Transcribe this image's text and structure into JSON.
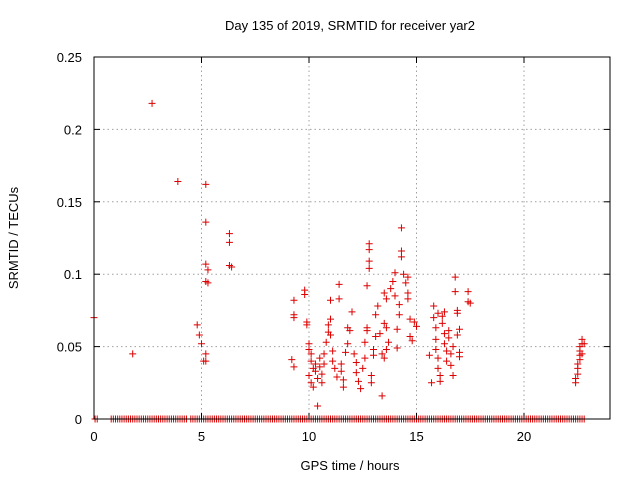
{
  "chart_data": {
    "type": "scatter",
    "title": "Day 135 of 2019, SRMTID for receiver yar2",
    "xlabel": "GPS time / hours",
    "ylabel": "SRMTID / TECUs",
    "xlim": [
      0,
      24
    ],
    "ylim": [
      0,
      0.25
    ],
    "x_ticks": [
      0,
      5,
      10,
      15,
      20
    ],
    "y_ticks": [
      0,
      0.05,
      0.1,
      0.15,
      0.2,
      0.25
    ],
    "x_tick_labels": [
      "0",
      "5",
      "10",
      "15",
      "20"
    ],
    "y_tick_labels": [
      "0",
      "0.05",
      "0.1",
      "0.15",
      "0.2",
      "0.25"
    ],
    "grid": true,
    "marker": "+",
    "color": "#dd0000",
    "series": [
      {
        "name": "SRMTID",
        "points": [
          [
            0.0,
            0.07
          ],
          [
            1.8,
            0.045
          ],
          [
            2.7,
            0.218
          ],
          [
            3.9,
            0.164
          ],
          [
            4.8,
            0.065
          ],
          [
            4.9,
            0.058
          ],
          [
            5.0,
            0.052
          ],
          [
            5.1,
            0.04
          ],
          [
            5.2,
            0.045
          ],
          [
            5.2,
            0.04
          ],
          [
            5.2,
            0.162
          ],
          [
            5.2,
            0.136
          ],
          [
            5.2,
            0.107
          ],
          [
            5.3,
            0.103
          ],
          [
            5.2,
            0.095
          ],
          [
            5.3,
            0.094
          ],
          [
            6.3,
            0.128
          ],
          [
            6.3,
            0.122
          ],
          [
            6.3,
            0.106
          ],
          [
            6.4,
            0.105
          ],
          [
            9.3,
            0.082
          ],
          [
            9.3,
            0.072
          ],
          [
            9.3,
            0.07
          ],
          [
            9.2,
            0.041
          ],
          [
            9.3,
            0.036
          ],
          [
            9.8,
            0.089
          ],
          [
            9.8,
            0.086
          ],
          [
            9.9,
            0.067
          ],
          [
            9.9,
            0.065
          ],
          [
            10.0,
            0.052
          ],
          [
            10.0,
            0.048
          ],
          [
            10.1,
            0.045
          ],
          [
            10.1,
            0.04
          ],
          [
            10.2,
            0.035
          ],
          [
            10.0,
            0.03
          ],
          [
            10.1,
            0.025
          ],
          [
            10.2,
            0.022
          ],
          [
            10.3,
            0.038
          ],
          [
            10.3,
            0.033
          ],
          [
            10.4,
            0.028
          ],
          [
            10.4,
            0.009
          ],
          [
            10.5,
            0.042
          ],
          [
            10.5,
            0.036
          ],
          [
            10.6,
            0.031
          ],
          [
            10.6,
            0.025
          ],
          [
            10.7,
            0.038
          ],
          [
            10.7,
            0.045
          ],
          [
            10.8,
            0.053
          ],
          [
            10.9,
            0.06
          ],
          [
            10.9,
            0.065
          ],
          [
            11.0,
            0.069
          ],
          [
            11.0,
            0.058
          ],
          [
            11.1,
            0.047
          ],
          [
            11.0,
            0.082
          ],
          [
            11.1,
            0.04
          ],
          [
            11.2,
            0.035
          ],
          [
            11.3,
            0.029
          ],
          [
            11.4,
            0.093
          ],
          [
            11.4,
            0.083
          ],
          [
            11.5,
            0.038
          ],
          [
            11.5,
            0.033
          ],
          [
            11.6,
            0.027
          ],
          [
            11.6,
            0.022
          ],
          [
            11.7,
            0.046
          ],
          [
            11.8,
            0.052
          ],
          [
            11.8,
            0.063
          ],
          [
            11.9,
            0.061
          ],
          [
            12.0,
            0.074
          ],
          [
            12.1,
            0.045
          ],
          [
            12.2,
            0.039
          ],
          [
            12.2,
            0.032
          ],
          [
            12.3,
            0.026
          ],
          [
            12.4,
            0.021
          ],
          [
            12.5,
            0.035
          ],
          [
            12.6,
            0.042
          ],
          [
            12.6,
            0.053
          ],
          [
            12.7,
            0.061
          ],
          [
            12.8,
            0.121
          ],
          [
            12.8,
            0.117
          ],
          [
            12.8,
            0.109
          ],
          [
            12.8,
            0.104
          ],
          [
            12.7,
            0.092
          ],
          [
            12.7,
            0.063
          ],
          [
            12.9,
            0.03
          ],
          [
            12.9,
            0.025
          ],
          [
            13.0,
            0.044
          ],
          [
            13.0,
            0.048
          ],
          [
            13.1,
            0.057
          ],
          [
            13.1,
            0.072
          ],
          [
            13.2,
            0.078
          ],
          [
            13.3,
            0.059
          ],
          [
            13.4,
            0.045
          ],
          [
            13.4,
            0.016
          ],
          [
            13.5,
            0.042
          ],
          [
            13.5,
            0.066
          ],
          [
            13.5,
            0.087
          ],
          [
            13.6,
            0.083
          ],
          [
            13.6,
            0.063
          ],
          [
            13.6,
            0.048
          ],
          [
            13.7,
            0.053
          ],
          [
            13.8,
            0.09
          ],
          [
            13.9,
            0.095
          ],
          [
            14.0,
            0.101
          ],
          [
            14.0,
            0.085
          ],
          [
            14.1,
            0.062
          ],
          [
            14.1,
            0.049
          ],
          [
            14.2,
            0.072
          ],
          [
            14.2,
            0.079
          ],
          [
            14.3,
            0.132
          ],
          [
            14.3,
            0.116
          ],
          [
            14.3,
            0.112
          ],
          [
            14.4,
            0.1
          ],
          [
            14.5,
            0.094
          ],
          [
            14.6,
            0.098
          ],
          [
            14.6,
            0.087
          ],
          [
            14.6,
            0.083
          ],
          [
            14.7,
            0.069
          ],
          [
            14.7,
            0.057
          ],
          [
            14.8,
            0.054
          ],
          [
            14.9,
            0.067
          ],
          [
            15.0,
            0.064
          ],
          [
            15.6,
            0.044
          ],
          [
            15.7,
            0.025
          ],
          [
            15.8,
            0.078
          ],
          [
            15.8,
            0.07
          ],
          [
            15.9,
            0.063
          ],
          [
            15.9,
            0.055
          ],
          [
            15.9,
            0.048
          ],
          [
            16.0,
            0.042
          ],
          [
            16.0,
            0.035
          ],
          [
            16.1,
            0.03
          ],
          [
            16.1,
            0.026
          ],
          [
            16.0,
            0.073
          ],
          [
            16.2,
            0.071
          ],
          [
            16.2,
            0.066
          ],
          [
            16.3,
            0.074
          ],
          [
            16.3,
            0.059
          ],
          [
            16.3,
            0.052
          ],
          [
            16.4,
            0.047
          ],
          [
            16.4,
            0.04
          ],
          [
            16.5,
            0.061
          ],
          [
            16.5,
            0.056
          ],
          [
            16.6,
            0.045
          ],
          [
            16.6,
            0.037
          ],
          [
            16.7,
            0.03
          ],
          [
            16.7,
            0.05
          ],
          [
            16.8,
            0.098
          ],
          [
            16.8,
            0.088
          ],
          [
            16.9,
            0.075
          ],
          [
            16.9,
            0.073
          ],
          [
            16.9,
            0.058
          ],
          [
            17.0,
            0.062
          ],
          [
            17.0,
            0.046
          ],
          [
            17.0,
            0.043
          ],
          [
            17.4,
            0.088
          ],
          [
            17.4,
            0.081
          ],
          [
            17.5,
            0.08
          ],
          [
            22.4,
            0.025
          ],
          [
            22.4,
            0.028
          ],
          [
            22.5,
            0.031
          ],
          [
            22.5,
            0.035
          ],
          [
            22.5,
            0.038
          ],
          [
            22.6,
            0.041
          ],
          [
            22.6,
            0.044
          ],
          [
            22.6,
            0.047
          ],
          [
            22.6,
            0.05
          ],
          [
            22.7,
            0.052
          ],
          [
            22.7,
            0.055
          ],
          [
            22.7,
            0.045
          ],
          [
            22.8,
            0.052
          ]
        ],
        "zero_x": [
          0.05,
          0.15,
          0.8,
          0.9,
          1.0,
          1.1,
          1.2,
          1.3,
          1.4,
          1.5,
          1.6,
          1.7,
          1.8,
          1.9,
          2.0,
          2.1,
          2.2,
          2.3,
          2.4,
          2.5,
          2.6,
          2.7,
          2.8,
          2.9,
          3.0,
          3.1,
          3.2,
          3.3,
          3.4,
          3.5,
          3.6,
          3.7,
          3.8,
          3.9,
          4.0,
          4.1,
          4.2,
          4.3,
          4.5,
          4.6,
          4.7,
          4.8,
          4.9,
          5.0,
          5.1,
          5.2,
          5.3,
          5.4,
          5.5,
          5.6,
          5.7,
          5.8,
          5.9,
          6.0,
          6.1,
          6.2,
          6.3,
          6.4,
          6.5,
          6.6,
          6.7,
          6.8,
          6.9,
          7.0,
          7.1,
          7.2,
          7.3,
          7.4,
          7.5,
          7.6,
          7.7,
          7.8,
          7.9,
          8.0,
          8.1,
          8.2,
          8.3,
          8.4,
          8.5,
          8.6,
          8.7,
          8.8,
          8.9,
          9.0,
          9.1,
          9.2,
          9.3,
          9.4,
          9.5,
          9.6,
          9.7,
          9.8,
          9.9,
          10.0,
          10.1,
          10.2,
          10.3,
          10.4,
          10.5,
          10.6,
          10.7,
          10.8,
          10.9,
          11.0,
          11.1,
          11.2,
          11.3,
          11.4,
          11.5,
          11.6,
          11.7,
          11.8,
          11.9,
          12.0,
          12.1,
          12.2,
          12.3,
          12.4,
          12.5,
          12.6,
          12.7,
          12.8,
          12.9,
          13.0,
          13.1,
          13.2,
          13.3,
          13.4,
          13.5,
          13.6,
          13.7,
          13.8,
          13.9,
          14.0,
          14.1,
          14.2,
          14.3,
          14.4,
          14.5,
          14.6,
          14.7,
          14.8,
          14.9,
          15.0,
          15.1,
          15.2,
          15.3,
          15.4,
          15.5,
          15.6,
          15.7,
          15.8,
          15.9,
          16.0,
          16.1,
          16.2,
          16.3,
          16.4,
          16.5,
          16.6,
          16.7,
          16.8,
          16.9,
          17.0,
          17.1,
          17.2,
          17.3,
          17.4,
          17.5,
          17.6,
          17.7,
          17.8,
          17.9,
          18.0,
          18.1,
          18.2,
          18.3,
          18.4,
          18.5,
          18.6,
          18.7,
          18.8,
          18.9,
          19.0,
          19.1,
          19.2,
          19.3,
          19.4,
          19.5,
          19.6,
          19.7,
          19.8,
          19.9,
          20.0,
          20.1,
          20.2,
          20.3,
          20.4,
          20.5,
          20.6,
          20.7,
          20.8,
          20.9,
          21.0,
          21.1,
          21.2,
          21.3,
          21.4,
          21.5,
          21.6,
          21.7,
          21.8,
          21.9,
          22.0,
          22.1,
          22.2,
          22.3,
          22.4,
          22.5,
          22.6,
          22.7,
          22.8
        ]
      }
    ]
  }
}
